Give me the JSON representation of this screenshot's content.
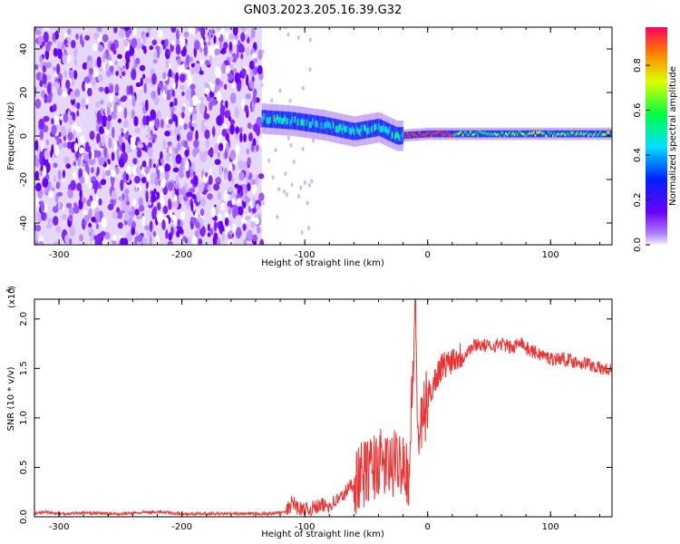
{
  "title": "GN03.2023.205.16.39.G32",
  "colorbar": {
    "label": "Normalized spectral amplitude",
    "ticks": [
      "0.0",
      "0.2",
      "0.4",
      "0.6",
      "0.8"
    ],
    "tick_values": [
      0.0,
      0.2,
      0.4,
      0.6,
      0.8
    ],
    "range": [
      0.0,
      0.97
    ]
  },
  "chart_data": [
    {
      "type": "heatmap",
      "xlabel": "Height of straight line (km)",
      "ylabel": "Frequency (Hz)",
      "xlim": [
        -320,
        150
      ],
      "ylim": [
        -50,
        50
      ],
      "xticks": [
        -300,
        -200,
        -100,
        0,
        100
      ],
      "xtick_labels": [
        "-300",
        "-200",
        "-100",
        "0",
        "100"
      ],
      "yticks": [
        -40,
        -20,
        0,
        20,
        40
      ],
      "ytick_labels": [
        "-40",
        "-20",
        "0",
        "20",
        "40"
      ],
      "colormap": "rainbow",
      "features": {
        "noise_region_x": [
          -320,
          -135
        ],
        "signal_band": [
          {
            "x": -135,
            "freq": 8
          },
          {
            "x": -110,
            "freq": 7
          },
          {
            "x": -85,
            "freq": 5
          },
          {
            "x": -60,
            "freq": 2
          },
          {
            "x": -40,
            "freq": 4
          },
          {
            "x": -25,
            "freq": 0
          },
          {
            "x": 0,
            "freq": 1
          },
          {
            "x": 50,
            "freq": 1
          },
          {
            "x": 100,
            "freq": 1
          },
          {
            "x": 150,
            "freq": 1
          }
        ]
      }
    },
    {
      "type": "line",
      "xlabel": "Height of straight line (km)",
      "ylabel": "SNR (10 * v/v)",
      "y_multiplier": "(x10",
      "y_multiplier_exp": "4",
      "xlim": [
        -320,
        150
      ],
      "ylim": [
        0,
        2.2
      ],
      "xticks": [
        -300,
        -200,
        -100,
        0,
        100
      ],
      "xtick_labels": [
        "-300",
        "-200",
        "-100",
        "0",
        "100"
      ],
      "yticks": [
        0.0,
        0.5,
        1.0,
        1.5,
        2.0
      ],
      "ytick_labels": [
        "0.0",
        "0.5",
        "1.0",
        "1.5",
        "2.0"
      ],
      "series": [
        {
          "color": "#ee3333",
          "x": [
            -320,
            -310,
            -300,
            -280,
            -250,
            -220,
            -200,
            -180,
            -150,
            -130,
            -115,
            -110,
            -105,
            -100,
            -90,
            -80,
            -70,
            -60,
            -50,
            -40,
            -30,
            -20,
            -15,
            -12,
            -10,
            -8,
            -5,
            0,
            10,
            20,
            30,
            40,
            50,
            60,
            70,
            75,
            80,
            90,
            100,
            110,
            120,
            130,
            140,
            150
          ],
          "y": [
            0.03,
            0.05,
            0.03,
            0.04,
            0.03,
            0.05,
            0.03,
            0.03,
            0.03,
            0.03,
            0.05,
            0.15,
            0.08,
            0.06,
            0.1,
            0.12,
            0.2,
            0.35,
            0.45,
            0.55,
            0.5,
            0.6,
            0.4,
            1.5,
            2.2,
            0.8,
            0.9,
            1.2,
            1.5,
            1.6,
            1.65,
            1.75,
            1.72,
            1.75,
            1.7,
            1.8,
            1.7,
            1.65,
            1.6,
            1.6,
            1.57,
            1.55,
            1.5,
            1.48
          ]
        }
      ]
    }
  ]
}
